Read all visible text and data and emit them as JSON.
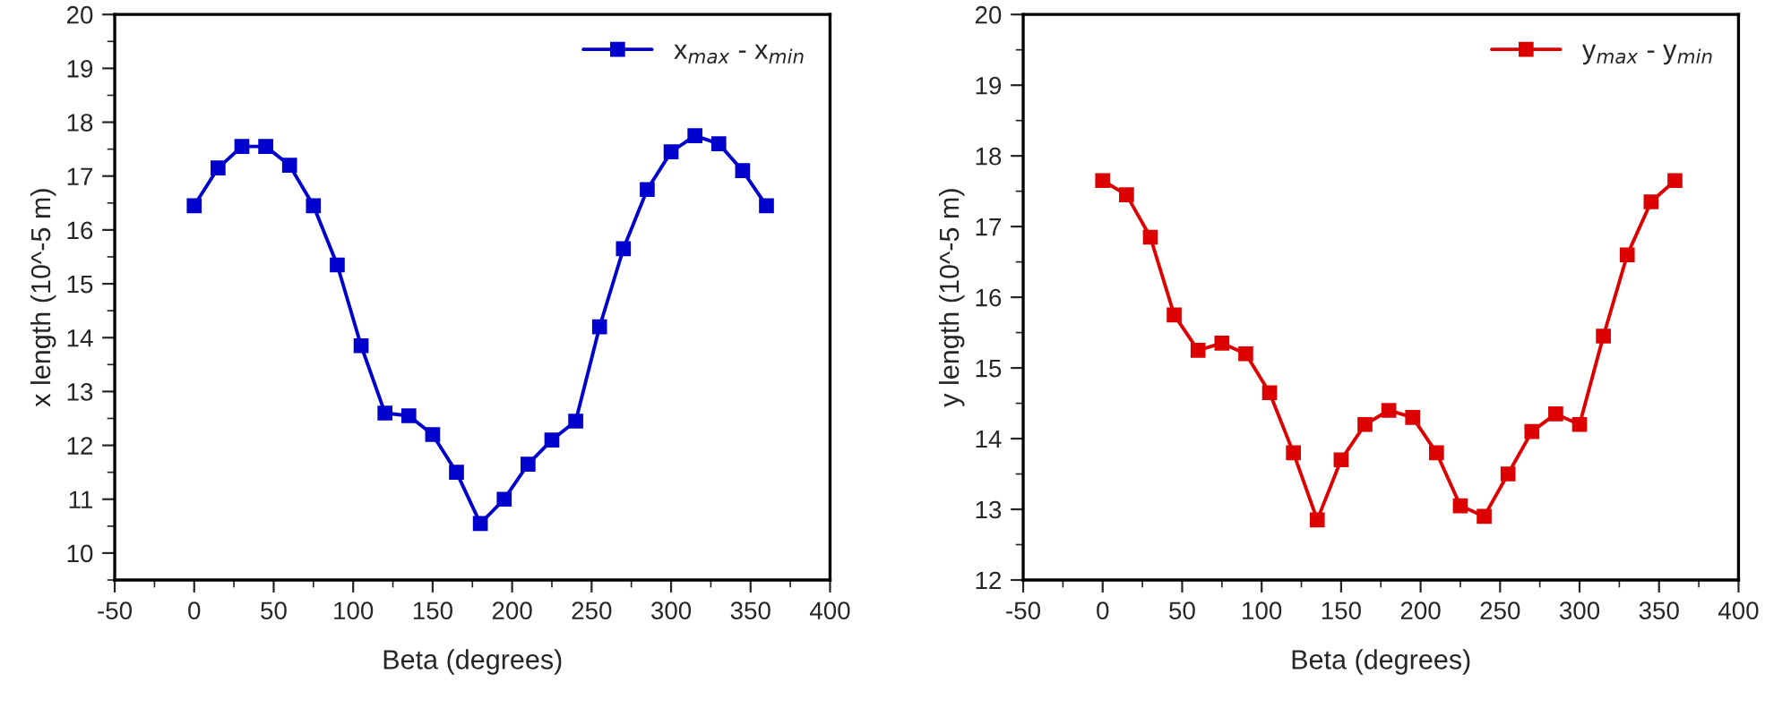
{
  "chart_data": [
    {
      "type": "line",
      "xlabel": "Beta (degrees)",
      "ylabel": "x length (10^-5 m)",
      "x": [
        0,
        15,
        30,
        45,
        60,
        75,
        90,
        105,
        120,
        135,
        150,
        165,
        180,
        195,
        210,
        225,
        240,
        255,
        270,
        285,
        300,
        315,
        330,
        345,
        360
      ],
      "series": [
        {
          "name": "x$_{max}$ - x$_{min}$",
          "color": "#0000cc",
          "values": [
            16.45,
            17.15,
            17.55,
            17.55,
            17.2,
            16.45,
            15.35,
            13.85,
            12.6,
            12.55,
            12.2,
            11.5,
            10.55,
            11.0,
            11.65,
            12.1,
            12.45,
            14.2,
            15.65,
            16.75,
            17.45,
            17.75,
            17.6,
            17.1,
            16.45
          ]
        }
      ],
      "xlim": [
        -50,
        400
      ],
      "xticks": [
        -50,
        0,
        50,
        100,
        150,
        200,
        250,
        300,
        350,
        400
      ],
      "ylim": [
        9.5,
        20
      ],
      "yticks": [
        10,
        11,
        12,
        13,
        14,
        15,
        16,
        17,
        18,
        19,
        20
      ],
      "marker": "square",
      "line_style": "solid",
      "legend": "top right",
      "grid": false
    },
    {
      "type": "line",
      "xlabel": "Beta (degrees)",
      "ylabel": "y length (10^-5 m)",
      "x": [
        0,
        15,
        30,
        45,
        60,
        75,
        90,
        105,
        120,
        135,
        150,
        165,
        180,
        195,
        210,
        225,
        240,
        255,
        270,
        285,
        300,
        315,
        330,
        345,
        360
      ],
      "series": [
        {
          "name": "y$_{max}$ - y$_{min}$",
          "color": "#dd0000",
          "values": [
            17.65,
            17.45,
            16.85,
            15.75,
            15.25,
            15.35,
            15.2,
            14.65,
            13.8,
            12.85,
            13.7,
            14.2,
            14.4,
            14.3,
            13.8,
            13.05,
            12.9,
            13.5,
            14.1,
            14.35,
            14.2,
            15.45,
            16.6,
            17.35,
            17.65
          ]
        }
      ],
      "xlim": [
        -50,
        400
      ],
      "xticks": [
        -50,
        0,
        50,
        100,
        150,
        200,
        250,
        300,
        350,
        400
      ],
      "ylim": [
        12,
        20
      ],
      "yticks": [
        12,
        13,
        14,
        15,
        16,
        17,
        18,
        19,
        20
      ],
      "marker": "square",
      "line_style": "solid",
      "legend": "top right",
      "grid": false
    }
  ]
}
